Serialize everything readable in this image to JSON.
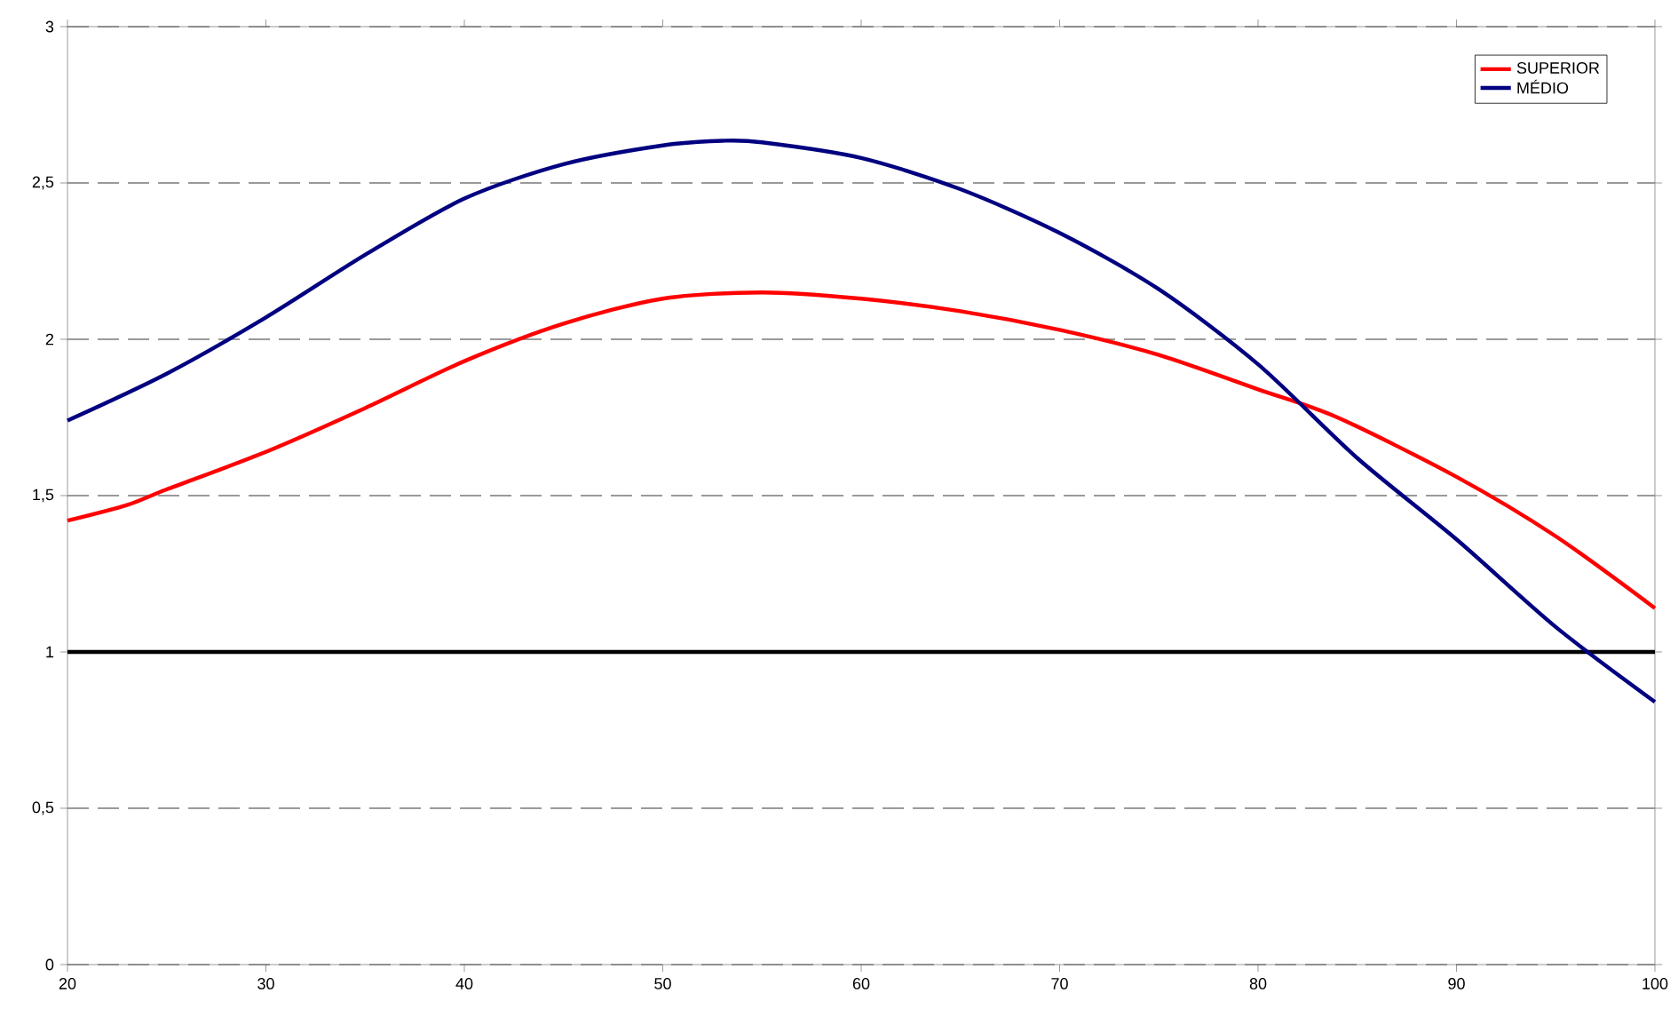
{
  "chart_data": {
    "type": "line",
    "x": [
      20,
      25,
      30,
      35,
      40,
      45,
      50,
      53,
      55,
      60,
      65,
      70,
      75,
      80,
      85,
      90,
      95,
      100
    ],
    "series": [
      {
        "name": "SUPERIOR",
        "color": "#ff0000",
        "x": [
          20,
          23,
          25,
          30,
          35,
          40,
          45,
          50,
          55,
          60,
          65,
          70,
          75,
          80,
          84,
          90,
          95,
          100
        ],
        "values": [
          1.42,
          1.47,
          1.52,
          1.64,
          1.78,
          1.93,
          2.05,
          2.13,
          2.15,
          2.13,
          2.09,
          2.03,
          1.95,
          1.84,
          1.75,
          1.56,
          1.37,
          1.14
        ]
      },
      {
        "name": "MÉDIO",
        "color": "#000080",
        "values": [
          1.74,
          1.89,
          2.07,
          2.27,
          2.45,
          2.56,
          2.62,
          2.635,
          2.63,
          2.58,
          2.48,
          2.34,
          2.16,
          1.92,
          1.62,
          1.36,
          1.08,
          0.84
        ]
      }
    ],
    "xlim": [
      20,
      100
    ],
    "xticks": [
      20,
      30,
      40,
      50,
      60,
      70,
      80,
      90,
      100
    ],
    "ylim": [
      0,
      3
    ],
    "yticks": [
      0,
      {
        "value": 0.5,
        "label": "0,5"
      },
      1,
      {
        "value": 1.5,
        "label": "1,5"
      },
      2,
      {
        "value": 2.5,
        "label": "2,5"
      },
      3
    ],
    "grid": "y",
    "legend": "top right",
    "line_style": "solid",
    "marker": "none",
    "ref_lines": [
      {
        "axis": "y",
        "value": 1,
        "color": "#000000",
        "line_style": "solid"
      }
    ]
  }
}
